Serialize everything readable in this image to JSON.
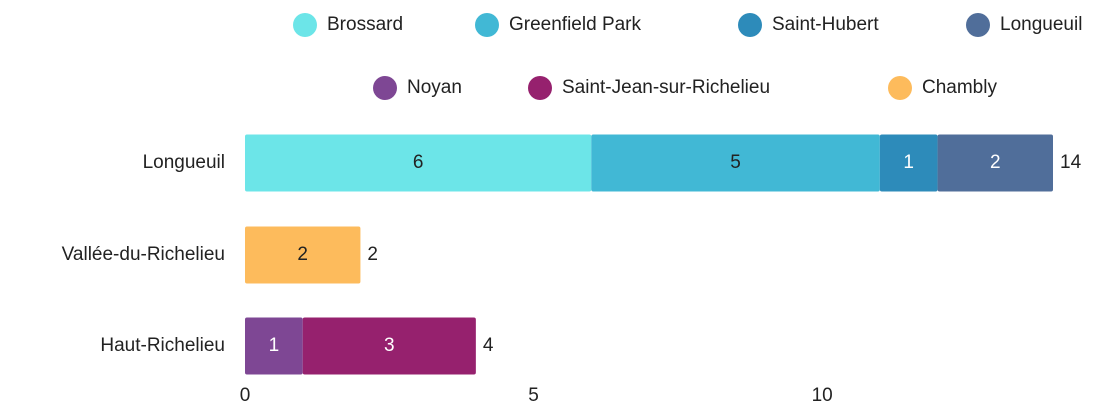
{
  "chart_data": {
    "type": "stacked-bar-horizontal",
    "categories": [
      "Longueuil",
      "Vallée-du-Richelieu",
      "Haut-Richelieu"
    ],
    "series": [
      {
        "name": "Brossard",
        "color": "#6ce5e8",
        "values": [
          6,
          null,
          null
        ]
      },
      {
        "name": "Greenfield Park",
        "color": "#41b8d5",
        "values": [
          5,
          null,
          null
        ]
      },
      {
        "name": "Saint-Hubert",
        "color": "#2d8bba",
        "values": [
          1,
          null,
          null
        ]
      },
      {
        "name": "Longueuil",
        "color": "#506e9a",
        "values": [
          2,
          null,
          null
        ]
      },
      {
        "name": "Noyan",
        "color": "#7e4794",
        "values": [
          null,
          null,
          1
        ]
      },
      {
        "name": "Saint-Jean-sur-Richelieu",
        "color": "#96216e",
        "values": [
          null,
          null,
          3
        ]
      },
      {
        "name": "Chambly",
        "color": "#fdbb5c",
        "values": [
          null,
          2,
          null
        ]
      }
    ],
    "totals": [
      14,
      2,
      4
    ],
    "xlim": [
      0,
      14
    ],
    "xticks": [
      0,
      5,
      10
    ],
    "legend": "top"
  }
}
